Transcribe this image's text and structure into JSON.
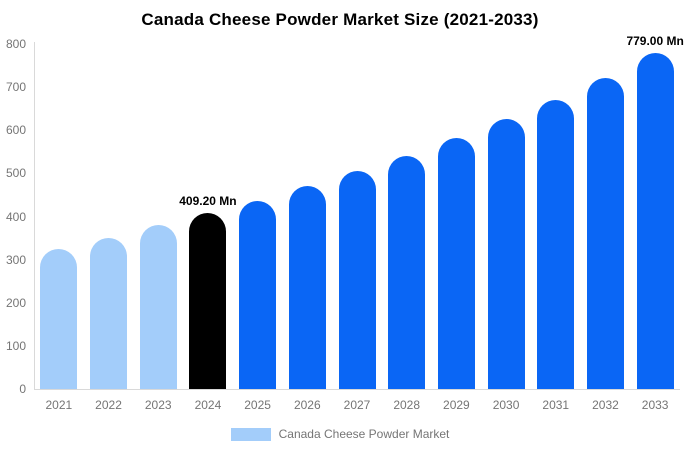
{
  "title": "Canada Cheese Powder Market Size (2021-2033)",
  "chart_data": {
    "type": "bar",
    "title": "Canada Cheese Powder Market Size (2021-2033)",
    "categories": [
      "2021",
      "2022",
      "2023",
      "2024",
      "2025",
      "2026",
      "2027",
      "2028",
      "2029",
      "2030",
      "2031",
      "2032",
      "2033"
    ],
    "values": [
      325,
      350,
      380,
      409.2,
      437,
      470,
      505,
      540,
      582,
      625,
      671,
      722,
      779
    ],
    "unit": "Mn",
    "xlabel": "",
    "ylabel": "",
    "ylim": [
      0,
      800
    ],
    "yticks": [
      0,
      100,
      200,
      300,
      400,
      500,
      600,
      700,
      800
    ],
    "grid": false,
    "legend": {
      "label": "Canada Cheese Powder Market",
      "position": "bottom",
      "swatch_color": "#a3cdfa"
    },
    "bar_colors": [
      "#a3cdfa",
      "#a3cdfa",
      "#a3cdfa",
      "#000000",
      "#0a66f5",
      "#0a66f5",
      "#0a66f5",
      "#0a66f5",
      "#0a66f5",
      "#0a66f5",
      "#0a66f5",
      "#0a66f5",
      "#0a66f5"
    ],
    "annotations": [
      {
        "index": 3,
        "text": "409.20 Mn"
      },
      {
        "index": 12,
        "text": "779.00 Mn"
      }
    ]
  },
  "colors": {
    "historical_bar": "#a3cdfa",
    "highlight_bar": "#000000",
    "forecast_bar": "#0a66f5",
    "axis_text": "#757575",
    "axis_line": "#d9d9d9",
    "title_text": "#000000",
    "background": "#ffffff"
  }
}
